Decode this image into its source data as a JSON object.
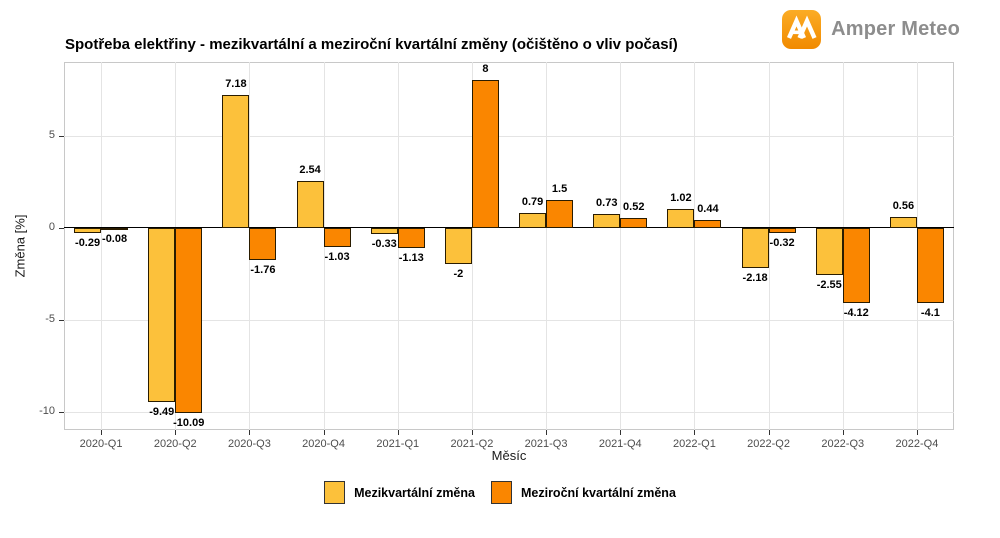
{
  "header": {
    "logo": {
      "text": "Amper Meteo",
      "icon_name": "amper-meteo-monogram-icon",
      "icon_gradient_top": "#FBAC25",
      "icon_gradient_bottom": "#F18A00",
      "text_color": "#8d8d8d"
    }
  },
  "chart_data": {
    "type": "bar",
    "title": "Spotřeba elektřiny - mezikvartální a meziroční kvartální změny (očištěno o vliv počasí)",
    "categories": [
      "2020-Q1",
      "2020-Q2",
      "2020-Q3",
      "2020-Q4",
      "2021-Q1",
      "2021-Q2",
      "2021-Q3",
      "2021-Q4",
      "2022-Q1",
      "2022-Q2",
      "2022-Q3",
      "2022-Q4"
    ],
    "series": [
      {
        "name": "Mezikvartální změna",
        "color": "#FCC13B",
        "values": [
          -0.29,
          -9.49,
          7.18,
          2.54,
          -0.33,
          -2,
          0.79,
          0.73,
          1.02,
          -2.18,
          -2.55,
          0.56
        ],
        "labels": [
          "-0.29",
          "-9.49",
          "7.18",
          "2.54",
          "-0.33",
          "-2",
          "0.79",
          "0.73",
          "1.02",
          "-2.18",
          "-2.55",
          "0.56"
        ]
      },
      {
        "name": "Meziroční kvartální změna",
        "color": "#FA8600",
        "values": [
          -0.08,
          -10.09,
          -1.76,
          -1.03,
          -1.13,
          8,
          1.5,
          0.52,
          0.44,
          -0.32,
          -4.12,
          -4.1
        ],
        "labels": [
          "-0.08",
          "-10.09",
          "-1.76",
          "-1.03",
          "-1.13",
          "8",
          "1.5",
          "0.52",
          "0.44",
          "-0.32",
          "-4.12",
          "-4.1"
        ]
      }
    ],
    "xlabel": "Měsíc",
    "ylabel": "Změna [%]",
    "ylim": [
      -11,
      9
    ],
    "yticks": [
      5,
      0,
      -5,
      -10
    ],
    "grid": true,
    "legend_position": "bottom",
    "bar_border_color": "#2a1c00",
    "zero_line_color": "#000000"
  }
}
